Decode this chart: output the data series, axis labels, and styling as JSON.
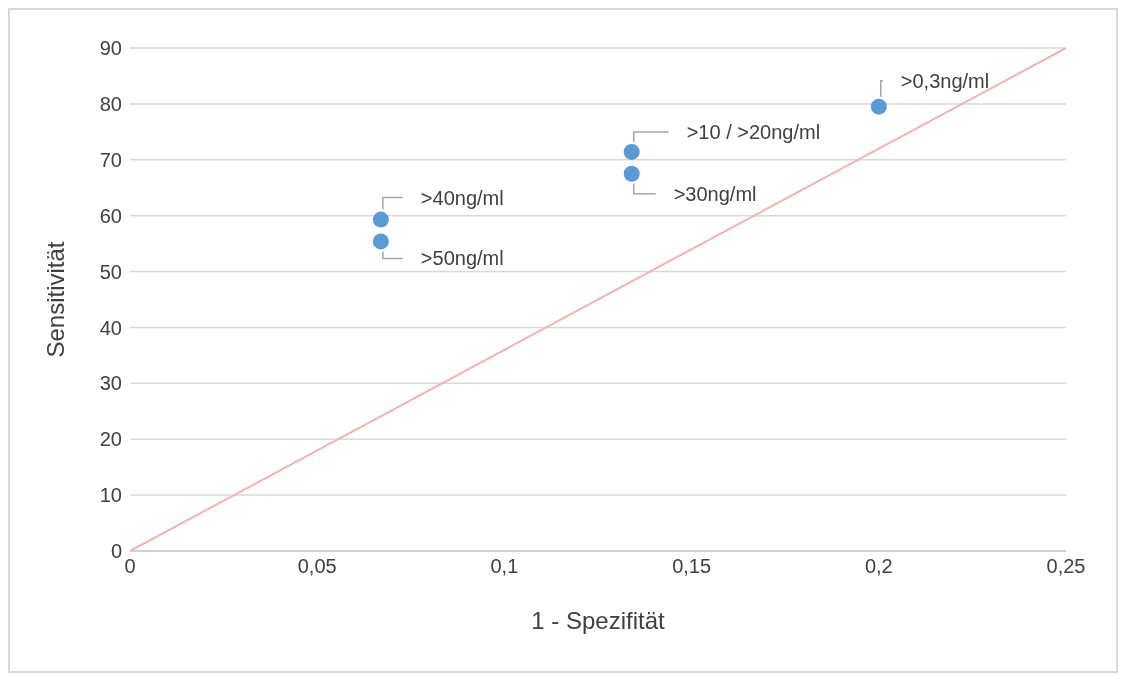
{
  "chart_data": {
    "type": "scatter",
    "xlabel": "1 - Spezifität",
    "ylabel": "Sensitivität",
    "xlim": [
      0,
      0.25
    ],
    "xticks": [
      0,
      {
        "value": 0.05,
        "label": "0,05"
      },
      {
        "value": 0.1,
        "label": "0,1"
      },
      {
        "value": 0.15,
        "label": "0,15"
      },
      {
        "value": 0.2,
        "label": "0,2"
      },
      {
        "value": 0.25,
        "label": "0,25"
      }
    ],
    "ylim": [
      0,
      90
    ],
    "yticks": [
      0,
      10,
      20,
      30,
      40,
      50,
      60,
      70,
      80,
      90
    ],
    "grid": "y",
    "series": [
      {
        "type": "line",
        "marker": "none",
        "color": "#f4b3b0",
        "x": [
          0,
          0.25
        ],
        "values": [
          0,
          90
        ]
      },
      {
        "marker": "circle",
        "color": "#5b9bd5",
        "x": [
          0.067,
          0.067,
          0.134,
          0.134,
          0.2
        ],
        "values": [
          59.3,
          55.4,
          71.4,
          67.5,
          79.5
        ]
      }
    ],
    "annotations": [
      {
        "text": ">40ng/ml",
        "x": 0.067,
        "y": 59.3
      },
      {
        "text": ">50ng/ml",
        "x": 0.067,
        "y": 55.4
      },
      {
        "text": ">10 / >20ng/ml",
        "x": 0.134,
        "y": 71.4
      },
      {
        "text": ">30ng/ml",
        "x": 0.134,
        "y": 67.5
      },
      {
        "text": ">0,3ng/ml",
        "x": 0.2,
        "y": 79.5
      }
    ]
  }
}
